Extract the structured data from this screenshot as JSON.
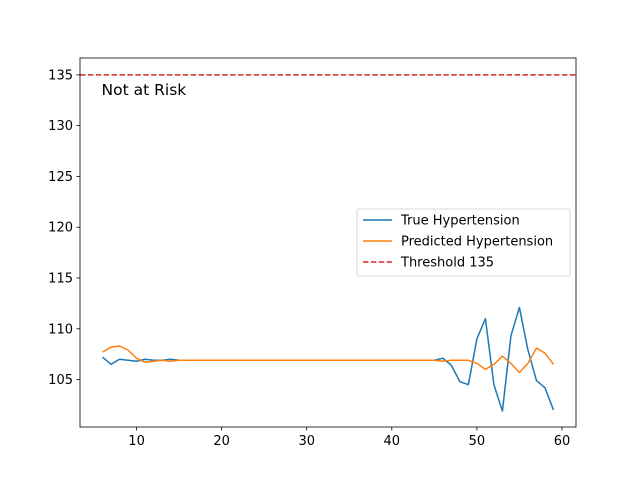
{
  "chart_data": {
    "type": "line",
    "title": "",
    "xlabel": "",
    "ylabel": "",
    "xlim": [
      3.35,
      61.65
    ],
    "ylim": [
      100.33,
      136.66
    ],
    "x_ticks": [
      10,
      20,
      30,
      40,
      50,
      60
    ],
    "y_ticks": [
      105,
      110,
      115,
      120,
      125,
      130,
      135
    ],
    "grid": false,
    "legend_position": "center-right",
    "annotation": "Not at Risk",
    "annotation_position": {
      "x": 6,
      "y": 133.5
    },
    "threshold": {
      "name": "Threshold 135",
      "value": 135,
      "color": "#d62728",
      "style": "dashed"
    },
    "x": [
      6,
      7,
      8,
      9,
      10,
      11,
      12,
      13,
      14,
      15,
      16,
      17,
      18,
      19,
      20,
      21,
      22,
      23,
      24,
      25,
      26,
      27,
      28,
      29,
      30,
      31,
      32,
      33,
      34,
      35,
      36,
      37,
      38,
      39,
      40,
      41,
      42,
      43,
      44,
      45,
      46,
      47,
      48,
      49,
      50,
      51,
      52,
      53,
      54,
      55,
      56,
      57,
      58,
      59
    ],
    "series": [
      {
        "name": "True Hypertension",
        "color": "#1f77b4",
        "values": [
          107.2,
          106.5,
          107.0,
          106.9,
          106.8,
          107.0,
          106.9,
          106.9,
          107.0,
          106.9,
          106.9,
          106.9,
          106.9,
          106.9,
          106.9,
          106.9,
          106.9,
          106.9,
          106.9,
          106.9,
          106.9,
          106.9,
          106.9,
          106.9,
          106.9,
          106.9,
          106.9,
          106.9,
          106.9,
          106.9,
          106.9,
          106.9,
          106.9,
          106.9,
          106.9,
          106.9,
          106.9,
          106.9,
          106.9,
          106.9,
          107.1,
          106.4,
          104.8,
          104.5,
          109.0,
          111.0,
          104.5,
          101.9,
          109.3,
          112.1,
          107.9,
          104.9,
          104.2,
          102.0
        ]
      },
      {
        "name": "Predicted Hypertension",
        "color": "#ff7f0e",
        "values": [
          107.7,
          108.2,
          108.3,
          107.9,
          107.1,
          106.7,
          106.8,
          106.9,
          106.8,
          106.9,
          106.9,
          106.9,
          106.9,
          106.9,
          106.9,
          106.9,
          106.9,
          106.9,
          106.9,
          106.9,
          106.9,
          106.9,
          106.9,
          106.9,
          106.9,
          106.9,
          106.9,
          106.9,
          106.9,
          106.9,
          106.9,
          106.9,
          106.9,
          106.9,
          106.9,
          106.9,
          106.9,
          106.9,
          106.9,
          106.9,
          106.8,
          106.9,
          106.9,
          106.9,
          106.6,
          106.0,
          106.5,
          107.3,
          106.6,
          105.7,
          106.6,
          108.1,
          107.6,
          106.5
        ]
      }
    ]
  }
}
